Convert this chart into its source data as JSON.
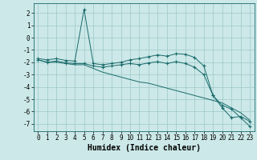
{
  "bg_color": "#cce8e8",
  "grid_color": "#9ec8c8",
  "line_color": "#1a6b6b",
  "marker_color": "#1a6b6b",
  "xlabel": "Humidex (Indice chaleur)",
  "xlabel_fontsize": 7,
  "tick_fontsize": 5.5,
  "xlim": [
    -0.5,
    23.5
  ],
  "ylim": [
    -7.6,
    2.8
  ],
  "yticks": [
    2,
    1,
    0,
    -1,
    -2,
    -3,
    -4,
    -5,
    -6,
    -7
  ],
  "xticks": [
    0,
    1,
    2,
    3,
    4,
    5,
    6,
    7,
    8,
    9,
    10,
    11,
    12,
    13,
    14,
    15,
    16,
    17,
    18,
    19,
    20,
    21,
    22,
    23
  ],
  "series1": [
    -1.7,
    -1.8,
    -1.7,
    -1.85,
    -1.9,
    2.3,
    -2.1,
    -2.2,
    -2.1,
    -2.0,
    -1.8,
    -1.7,
    -1.55,
    -1.4,
    -1.5,
    -1.3,
    -1.35,
    -1.6,
    -2.3,
    -4.7,
    -5.7,
    -6.5,
    -6.4,
    -6.8
  ],
  "series2": [
    -1.8,
    -2.0,
    -1.9,
    -2.05,
    -2.1,
    -2.1,
    -2.3,
    -2.4,
    -2.3,
    -2.2,
    -2.1,
    -2.2,
    -2.05,
    -1.95,
    -2.1,
    -1.95,
    -2.1,
    -2.4,
    -3.0,
    -4.7,
    -5.5,
    -5.8,
    -6.5,
    -7.2
  ],
  "series3": [
    -1.8,
    -2.0,
    -2.0,
    -2.1,
    -2.2,
    -2.2,
    -2.5,
    -2.8,
    -3.0,
    -3.2,
    -3.4,
    -3.6,
    -3.7,
    -3.9,
    -4.1,
    -4.3,
    -4.5,
    -4.7,
    -4.9,
    -5.1,
    -5.3,
    -5.7,
    -6.1,
    -6.7
  ]
}
